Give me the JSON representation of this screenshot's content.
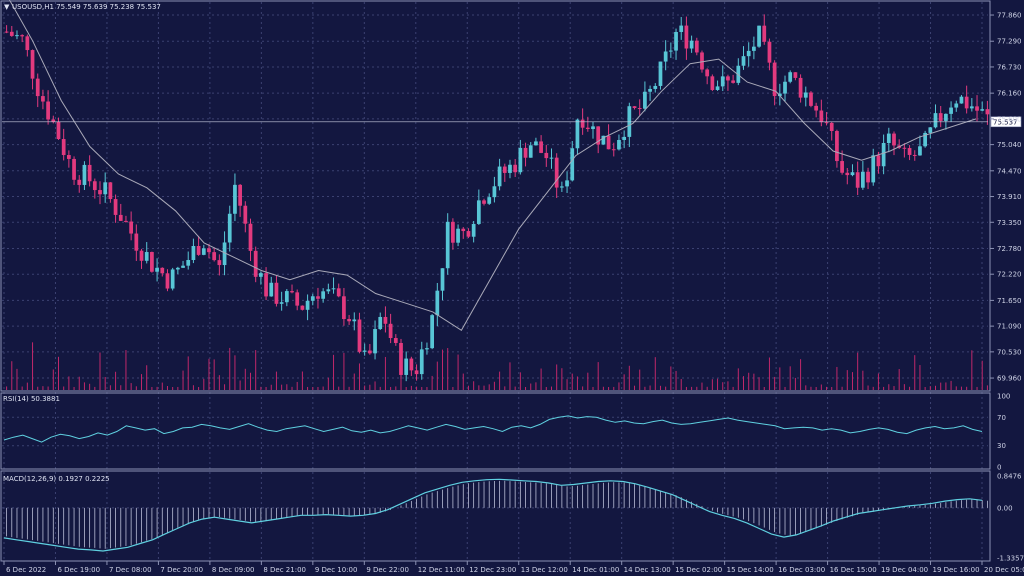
{
  "colors": {
    "background": "#131740",
    "grid": "#3b4171",
    "bull": "#58c6d6",
    "bear": "#e23a7e",
    "ma": "#a9a9b8",
    "volume": "#c0286a",
    "rsi_line": "#5fd0e0",
    "macd_line": "#5fd0e0",
    "macd_hist": "#b9bdd6",
    "text": "#cfd3e6"
  },
  "chart_data": {
    "type": "candlestick",
    "symbol_header": "USOUSD,H1  75.549 75.639 75.238 75.537",
    "last_price_label": "75.537",
    "last_price": 75.537,
    "y_tick_labels": [
      "77.860",
      "77.290",
      "76.730",
      "76.160",
      "75.600",
      "75.040",
      "74.470",
      "73.910",
      "73.350",
      "72.780",
      "72.220",
      "71.650",
      "71.090",
      "70.530",
      "69.960"
    ],
    "ylim": [
      69.7,
      78.1
    ],
    "x_tick_labels": [
      "6 Dec 2022",
      "6 Dec 19:00",
      "7 Dec 08:00",
      "7 Dec 20:00",
      "8 Dec 09:00",
      "8 Dec 21:00",
      "9 Dec 10:00",
      "9 Dec 22:00",
      "12 Dec 11:00",
      "12 Dec 23:00",
      "13 Dec 12:00",
      "14 Dec 01:00",
      "14 Dec 13:00",
      "15 Dec 02:00",
      "15 Dec 14:00",
      "16 Dec 03:00",
      "16 Dec 15:00",
      "19 Dec 04:00",
      "19 Dec 16:00",
      "20 Dec 05:00"
    ],
    "close_path": [
      77.5,
      77.3,
      76.2,
      75.4,
      74.5,
      74.3,
      74.0,
      73.5,
      72.9,
      72.4,
      72.1,
      72.5,
      73.0,
      72.3,
      74.2,
      72.6,
      71.8,
      71.7,
      71.5,
      71.9,
      71.7,
      71.3,
      70.2,
      71.4,
      70.3,
      70.1,
      71.2,
      73.2,
      73.1,
      73.9,
      74.3,
      74.6,
      75.1,
      74.8,
      73.9,
      75.8,
      75.3,
      75.0,
      75.6,
      75.9,
      76.6,
      77.5,
      77.3,
      76.5,
      76.3,
      76.8,
      77.4,
      76.3,
      76.5,
      76.1,
      75.6,
      74.5,
      74.2,
      74.6,
      75.1,
      74.7,
      74.9,
      75.6,
      76.1,
      75.9,
      75.6
    ],
    "ma_path": [
      78.4,
      77.3,
      76.0,
      75.0,
      74.4,
      74.1,
      73.6,
      72.9,
      72.6,
      72.3,
      72.1,
      72.3,
      72.2,
      71.8,
      71.6,
      71.4,
      71.0,
      72.1,
      73.2,
      74.0,
      74.8,
      75.2,
      75.5,
      76.2,
      76.8,
      76.9,
      76.4,
      76.2,
      75.5,
      74.9,
      74.7,
      74.9,
      75.2,
      75.4,
      75.6
    ],
    "rsi": {
      "label": "RSI(14) 50.3881",
      "levels": [
        100,
        70,
        30,
        0
      ],
      "values": [
        38,
        42,
        45,
        40,
        35,
        42,
        46,
        44,
        40,
        43,
        48,
        45,
        50,
        58,
        55,
        52,
        54,
        47,
        50,
        55,
        56,
        60,
        58,
        55,
        53,
        57,
        61,
        56,
        52,
        50,
        54,
        56,
        58,
        54,
        50,
        53,
        56,
        51,
        49,
        52,
        48,
        50,
        54,
        58,
        55,
        52,
        56,
        60,
        57,
        53,
        55,
        57,
        54,
        50,
        56,
        58,
        55,
        60,
        67,
        70,
        72,
        69,
        71,
        70,
        66,
        63,
        65,
        62,
        61,
        64,
        66,
        62,
        60,
        61,
        63,
        65,
        67,
        69,
        66,
        64,
        62,
        60,
        58,
        54,
        55,
        56,
        55,
        52,
        54,
        52,
        48,
        50,
        53,
        55,
        53,
        49,
        47,
        52,
        55,
        57,
        54,
        55,
        58,
        53,
        50
      ]
    },
    "macd": {
      "label": "MACD(12,26,9) 0.1927 0.2225",
      "levels": [
        "0.8476",
        "0.00",
        "-1.3357"
      ],
      "min": -1.3357,
      "max": 0.8476,
      "values": [
        -0.8,
        -0.85,
        -0.9,
        -0.95,
        -1.0,
        -1.05,
        -1.1,
        -1.12,
        -1.15,
        -1.1,
        -1.05,
        -0.95,
        -0.85,
        -0.7,
        -0.55,
        -0.4,
        -0.3,
        -0.25,
        -0.3,
        -0.35,
        -0.4,
        -0.35,
        -0.3,
        -0.25,
        -0.2,
        -0.2,
        -0.18,
        -0.2,
        -0.22,
        -0.2,
        -0.15,
        -0.05,
        0.1,
        0.25,
        0.4,
        0.5,
        0.6,
        0.68,
        0.72,
        0.75,
        0.76,
        0.74,
        0.72,
        0.7,
        0.66,
        0.6,
        0.62,
        0.66,
        0.7,
        0.72,
        0.7,
        0.64,
        0.55,
        0.45,
        0.35,
        0.2,
        0.05,
        -0.1,
        -0.2,
        -0.28,
        -0.4,
        -0.55,
        -0.7,
        -0.78,
        -0.72,
        -0.6,
        -0.48,
        -0.35,
        -0.25,
        -0.15,
        -0.1,
        -0.05,
        0.0,
        0.05,
        0.08,
        0.12,
        0.18,
        0.22,
        0.24,
        0.2
      ]
    }
  }
}
